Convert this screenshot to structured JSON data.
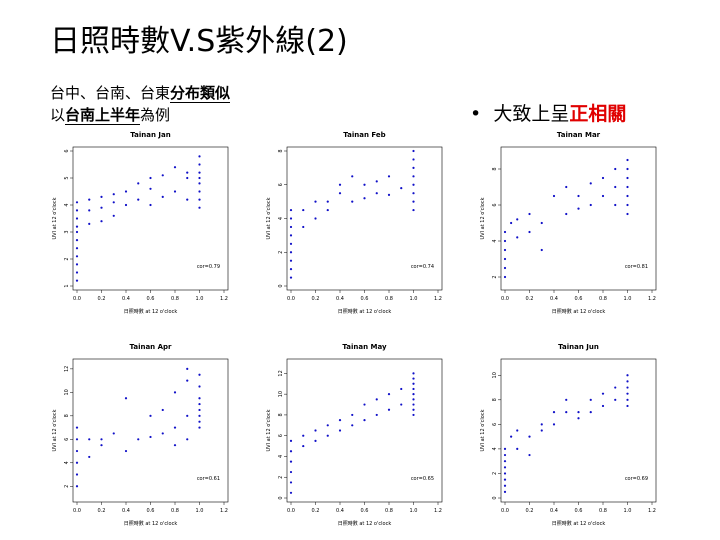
{
  "header": {
    "title": "日照時數V.S紫外線(2)",
    "subtitle_line1_prefix": "台中、台南、台東",
    "subtitle_line1_highlight": "分布類似",
    "subtitle_line2_prefix": "以",
    "subtitle_line2_highlight": "台南上半年",
    "subtitle_line2_suffix": "為例",
    "bullet_symbol": "•",
    "bullet_text": "大致上呈",
    "bullet_highlight": "正相關"
  },
  "colors": {
    "points": "#1010c8",
    "axes": "#000000",
    "highlight": "#e00000"
  },
  "chart_data": [
    {
      "type": "scatter",
      "title": "Tainan Jan",
      "xlabel": "日照時數 at 12 o'clock",
      "ylabel": "UVI at 12 o'clock",
      "xlim": [
        0,
        1.2
      ],
      "ylim": [
        1,
        6
      ],
      "xticks": [
        "0.0",
        "0.2",
        "0.4",
        "0.6",
        "0.8",
        "1.0",
        "1.2"
      ],
      "yticks": [
        1,
        2,
        3,
        4,
        5,
        6
      ],
      "annotation": "cor=0.79",
      "points": [
        [
          0,
          1.2
        ],
        [
          0,
          1.5
        ],
        [
          0,
          1.8
        ],
        [
          0,
          2.1
        ],
        [
          0,
          2.4
        ],
        [
          0,
          2.7
        ],
        [
          0,
          3.0
        ],
        [
          0,
          3.2
        ],
        [
          0,
          3.5
        ],
        [
          0,
          3.8
        ],
        [
          0,
          4.1
        ],
        [
          0.1,
          3.3
        ],
        [
          0.1,
          3.8
        ],
        [
          0.1,
          4.2
        ],
        [
          0.2,
          3.4
        ],
        [
          0.2,
          3.9
        ],
        [
          0.2,
          4.3
        ],
        [
          0.3,
          3.6
        ],
        [
          0.3,
          4.1
        ],
        [
          0.3,
          4.4
        ],
        [
          0.4,
          4.0
        ],
        [
          0.4,
          4.5
        ],
        [
          0.5,
          4.2
        ],
        [
          0.5,
          4.8
        ],
        [
          0.6,
          4.0
        ],
        [
          0.6,
          4.6
        ],
        [
          0.6,
          5.0
        ],
        [
          0.7,
          4.3
        ],
        [
          0.7,
          5.1
        ],
        [
          0.8,
          4.5
        ],
        [
          0.8,
          5.4
        ],
        [
          0.9,
          4.2
        ],
        [
          0.9,
          5.0
        ],
        [
          0.9,
          5.2
        ],
        [
          1.0,
          3.9
        ],
        [
          1.0,
          4.2
        ],
        [
          1.0,
          4.5
        ],
        [
          1.0,
          4.8
        ],
        [
          1.0,
          5.0
        ],
        [
          1.0,
          5.2
        ],
        [
          1.0,
          5.5
        ],
        [
          1.0,
          5.8
        ]
      ]
    },
    {
      "type": "scatter",
      "title": "Tainan Feb",
      "xlabel": "日照時數 at 12 o'clock",
      "ylabel": "UVI at 12 o'clock",
      "xlim": [
        0,
        1.2
      ],
      "ylim": [
        0,
        8
      ],
      "xticks": [
        "0.0",
        "0.2",
        "0.4",
        "0.6",
        "0.8",
        "1.0",
        "1.2"
      ],
      "yticks": [
        0,
        2,
        4,
        6,
        8
      ],
      "annotation": "cor=0.74",
      "points": [
        [
          0,
          0.5
        ],
        [
          0,
          1.0
        ],
        [
          0,
          1.5
        ],
        [
          0,
          2.0
        ],
        [
          0,
          2.5
        ],
        [
          0,
          3.0
        ],
        [
          0,
          3.5
        ],
        [
          0,
          4.0
        ],
        [
          0,
          4.5
        ],
        [
          0.1,
          3.5
        ],
        [
          0.1,
          4.5
        ],
        [
          0.2,
          4.0
        ],
        [
          0.2,
          5.0
        ],
        [
          0.3,
          4.5
        ],
        [
          0.3,
          5.0
        ],
        [
          0.4,
          5.5
        ],
        [
          0.4,
          6.0
        ],
        [
          0.5,
          5.0
        ],
        [
          0.5,
          6.5
        ],
        [
          0.6,
          5.2
        ],
        [
          0.6,
          6.0
        ],
        [
          0.7,
          5.5
        ],
        [
          0.7,
          6.2
        ],
        [
          0.8,
          5.4
        ],
        [
          0.8,
          6.5
        ],
        [
          0.9,
          5.8
        ],
        [
          1.0,
          4.5
        ],
        [
          1.0,
          5.0
        ],
        [
          1.0,
          5.5
        ],
        [
          1.0,
          6.0
        ],
        [
          1.0,
          6.5
        ],
        [
          1.0,
          7.0
        ],
        [
          1.0,
          7.5
        ],
        [
          1.0,
          8.0
        ]
      ]
    },
    {
      "type": "scatter",
      "title": "Tainan Mar",
      "xlabel": "日照時數 at 12 o'clock",
      "ylabel": "UVI at 12 o'clock",
      "xlim": [
        0,
        1.2
      ],
      "ylim": [
        1.5,
        9
      ],
      "xticks": [
        "0.0",
        "0.2",
        "0.4",
        "0.6",
        "0.8",
        "1.0",
        "1.2"
      ],
      "yticks": [
        2,
        4,
        6,
        8
      ],
      "annotation": "cor=0.81",
      "points": [
        [
          0,
          2.0
        ],
        [
          0,
          2.5
        ],
        [
          0,
          3.0
        ],
        [
          0,
          3.5
        ],
        [
          0,
          4.0
        ],
        [
          0,
          4.5
        ],
        [
          0.05,
          5.0
        ],
        [
          0.1,
          4.2
        ],
        [
          0.1,
          5.2
        ],
        [
          0.2,
          4.5
        ],
        [
          0.2,
          5.5
        ],
        [
          0.3,
          3.5
        ],
        [
          0.3,
          5.0
        ],
        [
          0.4,
          6.5
        ],
        [
          0.5,
          5.5
        ],
        [
          0.5,
          7.0
        ],
        [
          0.6,
          5.8
        ],
        [
          0.6,
          6.5
        ],
        [
          0.7,
          6.0
        ],
        [
          0.7,
          7.2
        ],
        [
          0.8,
          6.5
        ],
        [
          0.8,
          7.5
        ],
        [
          0.9,
          6.0
        ],
        [
          0.9,
          7.0
        ],
        [
          0.9,
          8.0
        ],
        [
          1.0,
          5.5
        ],
        [
          1.0,
          6.0
        ],
        [
          1.0,
          6.5
        ],
        [
          1.0,
          7.0
        ],
        [
          1.0,
          7.5
        ],
        [
          1.0,
          8.0
        ],
        [
          1.0,
          8.5
        ]
      ]
    },
    {
      "type": "scatter",
      "title": "Tainan Apr",
      "xlabel": "日照時數 at 12 o'clock",
      "ylabel": "UVI at 12 o'clock",
      "xlim": [
        0,
        1.2
      ],
      "ylim": [
        1,
        12.5
      ],
      "xticks": [
        "0.0",
        "0.2",
        "0.4",
        "0.6",
        "0.8",
        "1.0",
        "1.2"
      ],
      "yticks": [
        2,
        4,
        6,
        8,
        10,
        12
      ],
      "annotation": "cor=0.61",
      "points": [
        [
          0,
          2.0
        ],
        [
          0,
          3.0
        ],
        [
          0,
          4.0
        ],
        [
          0,
          5.0
        ],
        [
          0,
          6.0
        ],
        [
          0,
          7.0
        ],
        [
          0.1,
          4.5
        ],
        [
          0.1,
          6.0
        ],
        [
          0.2,
          5.5
        ],
        [
          0.2,
          6.0
        ],
        [
          0.3,
          6.5
        ],
        [
          0.4,
          5.0
        ],
        [
          0.4,
          9.5
        ],
        [
          0.5,
          6.0
        ],
        [
          0.6,
          6.2
        ],
        [
          0.6,
          8.0
        ],
        [
          0.7,
          6.5
        ],
        [
          0.7,
          8.5
        ],
        [
          0.8,
          5.5
        ],
        [
          0.8,
          7.0
        ],
        [
          0.8,
          10.0
        ],
        [
          0.9,
          6.0
        ],
        [
          0.9,
          8.0
        ],
        [
          0.9,
          11.0
        ],
        [
          0.9,
          12.0
        ],
        [
          1.0,
          7.0
        ],
        [
          1.0,
          7.5
        ],
        [
          1.0,
          8.0
        ],
        [
          1.0,
          8.5
        ],
        [
          1.0,
          9.0
        ],
        [
          1.0,
          9.5
        ],
        [
          1.0,
          10.5
        ],
        [
          1.0,
          11.5
        ]
      ]
    },
    {
      "type": "scatter",
      "title": "Tainan May",
      "xlabel": "日照時數 at 12 o'clock",
      "ylabel": "UVI at 12 o'clock",
      "xlim": [
        0,
        1.2
      ],
      "ylim": [
        0,
        13
      ],
      "xticks": [
        "0.0",
        "0.2",
        "0.4",
        "0.6",
        "0.8",
        "1.0",
        "1.2"
      ],
      "yticks": [
        0,
        2,
        4,
        6,
        8,
        10,
        12
      ],
      "annotation": "cor=0.65",
      "points": [
        [
          0,
          0.5
        ],
        [
          0,
          1.5
        ],
        [
          0,
          2.5
        ],
        [
          0,
          3.5
        ],
        [
          0,
          4.5
        ],
        [
          0,
          5.5
        ],
        [
          0.1,
          5.0
        ],
        [
          0.1,
          6.0
        ],
        [
          0.2,
          5.5
        ],
        [
          0.2,
          6.5
        ],
        [
          0.3,
          6.0
        ],
        [
          0.3,
          7.0
        ],
        [
          0.4,
          6.5
        ],
        [
          0.4,
          7.5
        ],
        [
          0.5,
          7.0
        ],
        [
          0.5,
          8.0
        ],
        [
          0.6,
          7.5
        ],
        [
          0.6,
          9.0
        ],
        [
          0.7,
          8.0
        ],
        [
          0.7,
          9.5
        ],
        [
          0.8,
          8.5
        ],
        [
          0.8,
          10.0
        ],
        [
          0.9,
          9.0
        ],
        [
          0.9,
          10.5
        ],
        [
          1.0,
          8.0
        ],
        [
          1.0,
          8.5
        ],
        [
          1.0,
          9.0
        ],
        [
          1.0,
          9.5
        ],
        [
          1.0,
          10.0
        ],
        [
          1.0,
          10.5
        ],
        [
          1.0,
          11.0
        ],
        [
          1.0,
          11.5
        ],
        [
          1.0,
          12.0
        ]
      ]
    },
    {
      "type": "scatter",
      "title": "Tainan Jun",
      "xlabel": "日照時數 at 12 o'clock",
      "ylabel": "UVI at 12 o'clock",
      "xlim": [
        0,
        1.2
      ],
      "ylim": [
        0,
        11
      ],
      "xticks": [
        "0.0",
        "0.2",
        "0.4",
        "0.6",
        "0.8",
        "1.0",
        "1.2"
      ],
      "yticks": [
        0,
        2,
        4,
        6,
        8,
        10
      ],
      "annotation": "cor=0.69",
      "points": [
        [
          0,
          0.5
        ],
        [
          0,
          1.0
        ],
        [
          0,
          1.5
        ],
        [
          0,
          2.0
        ],
        [
          0,
          2.5
        ],
        [
          0,
          3.0
        ],
        [
          0,
          3.5
        ],
        [
          0,
          4.0
        ],
        [
          0.05,
          5.0
        ],
        [
          0.1,
          4.0
        ],
        [
          0.1,
          5.5
        ],
        [
          0.2,
          3.5
        ],
        [
          0.2,
          5.0
        ],
        [
          0.3,
          5.5
        ],
        [
          0.3,
          6.0
        ],
        [
          0.4,
          6.0
        ],
        [
          0.4,
          7.0
        ],
        [
          0.5,
          7.0
        ],
        [
          0.5,
          8.0
        ],
        [
          0.6,
          6.5
        ],
        [
          0.6,
          7.0
        ],
        [
          0.7,
          7.0
        ],
        [
          0.7,
          8.0
        ],
        [
          0.8,
          7.5
        ],
        [
          0.8,
          8.5
        ],
        [
          0.9,
          8.0
        ],
        [
          0.9,
          9.0
        ],
        [
          1.0,
          7.5
        ],
        [
          1.0,
          8.0
        ],
        [
          1.0,
          8.5
        ],
        [
          1.0,
          9.0
        ],
        [
          1.0,
          9.5
        ],
        [
          1.0,
          10.0
        ]
      ]
    }
  ]
}
